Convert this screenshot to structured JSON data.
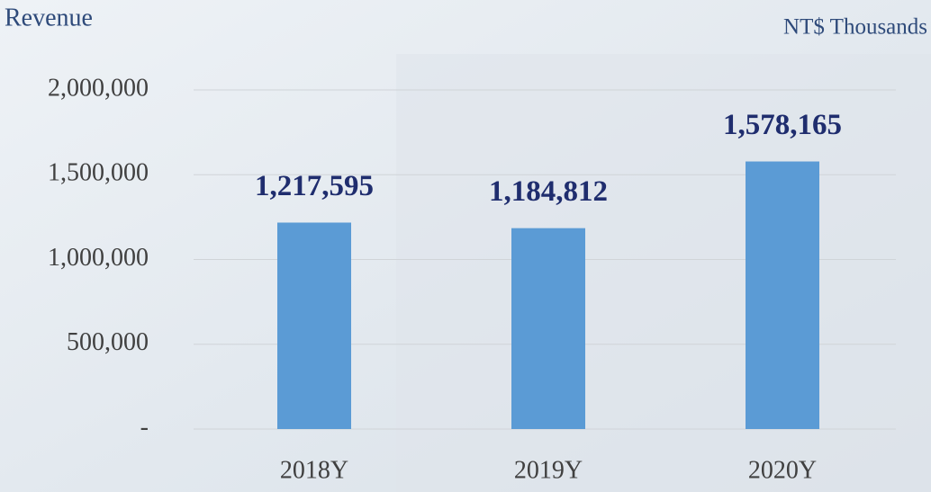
{
  "chart_data": {
    "type": "bar",
    "title": "Revenue",
    "unit_label": "NT$ Thousands",
    "categories": [
      "2018Y",
      "2019Y",
      "2020Y"
    ],
    "values": [
      1217595,
      1184812,
      1578165
    ],
    "value_labels": [
      "1,217,595",
      "1,184,812",
      "1,578,165"
    ],
    "color": "#5b9bd5",
    "ylim": [
      0,
      2000000
    ],
    "yticks": [
      {
        "value": 0,
        "label": "-"
      },
      {
        "value": 500000,
        "label": "500,000"
      },
      {
        "value": 1000000,
        "label": "1,000,000"
      },
      {
        "value": 1500000,
        "label": "1,500,000"
      },
      {
        "value": 2000000,
        "label": "2,000,000"
      }
    ],
    "grid": true
  }
}
